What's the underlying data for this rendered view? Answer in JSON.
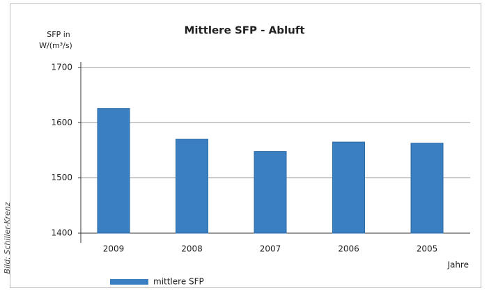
{
  "chart_data": {
    "type": "bar",
    "title": "Mittlere SFP - Abluft",
    "ylabel": [
      "SFP in",
      "W/(m³/s)"
    ],
    "xlabel": "Jahre",
    "credit": "Bild: Schiller-Krenz",
    "categories": [
      "2009",
      "2008",
      "2007",
      "2006",
      "2005"
    ],
    "series": [
      {
        "name": "mittlere SFP",
        "color": "#3a7fc1",
        "values": [
          1626,
          1570,
          1548,
          1565,
          1563
        ]
      }
    ],
    "ylim": [
      1400,
      1700
    ],
    "yticks": [
      1400,
      1500,
      1600,
      1700
    ],
    "grid": true,
    "legend": "bottom"
  }
}
